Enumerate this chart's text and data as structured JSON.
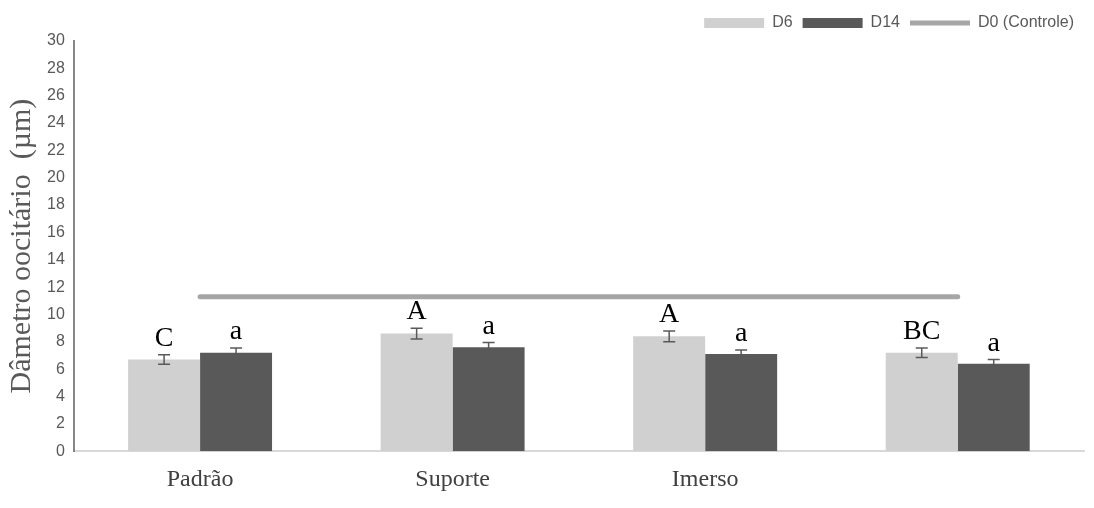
{
  "chart_data": {
    "type": "bar",
    "ylabel": "Dâmetro oocitário  (µm)",
    "categories": [
      "Padrão",
      "Suporte",
      "Imerso",
      null
    ],
    "series": [
      {
        "name": "D6",
        "color": "#d0d0d0",
        "values": [
          6.7,
          8.6,
          8.4,
          7.2
        ],
        "errors": [
          0.35,
          0.4,
          0.4,
          0.35
        ],
        "value_labels": [
          "C",
          "A",
          "A",
          "BC"
        ]
      },
      {
        "name": "D14",
        "color": "#595959",
        "values": [
          7.2,
          7.6,
          7.1,
          6.4
        ],
        "errors": [
          0.35,
          0.35,
          0.3,
          0.3
        ],
        "value_labels": [
          "a",
          "a",
          "a",
          "a"
        ]
      },
      {
        "name": "D0 (Controle)",
        "type": "line",
        "color": "#a6a6a6",
        "values": [
          11.3,
          11.3,
          11.3,
          11.3
        ],
        "marker": "none"
      }
    ],
    "ylim": [
      0,
      30
    ],
    "yticks": [
      0,
      2,
      4,
      6,
      8,
      10,
      12,
      14,
      16,
      18,
      20,
      22,
      24,
      26,
      28,
      30
    ],
    "grid": false,
    "legend": "top right"
  }
}
